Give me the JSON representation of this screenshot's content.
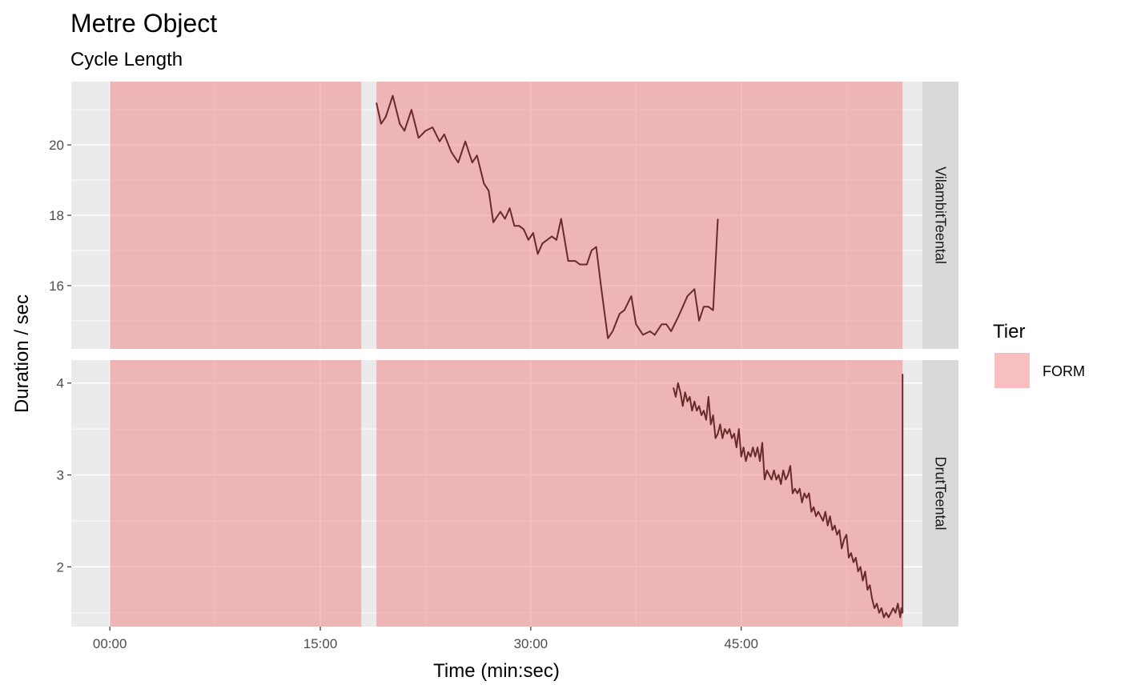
{
  "chart_data": {
    "type": "line",
    "title": "Metre Object",
    "subtitle": "Cycle Length",
    "xlabel": "Time (min:sec)",
    "ylabel": "Duration / sec",
    "x_unit": "seconds",
    "x_ticks": [
      {
        "value": 0,
        "label": "00:00"
      },
      {
        "value": 900,
        "label": "15:00"
      },
      {
        "value": 1800,
        "label": "30:00"
      },
      {
        "value": 2700,
        "label": "45:00"
      }
    ],
    "xlim": [
      -165,
      3475
    ],
    "grid": true,
    "legend": {
      "title": "Tier",
      "position": "right",
      "items": [
        {
          "label": "FORM",
          "color": "#f08080"
        }
      ]
    },
    "tier_spans": [
      {
        "tier": "FORM",
        "start": 0,
        "end": 1075
      },
      {
        "tier": "FORM",
        "start": 1140,
        "end": 3390
      }
    ],
    "panels": [
      {
        "strip": "VilambitTeental",
        "ylim": [
          14.2,
          21.8
        ],
        "y_ticks": [
          16,
          18,
          20
        ],
        "series": {
          "x": [
            1140,
            1160,
            1180,
            1210,
            1240,
            1260,
            1290,
            1320,
            1350,
            1380,
            1410,
            1430,
            1460,
            1490,
            1520,
            1550,
            1570,
            1600,
            1620,
            1640,
            1670,
            1690,
            1710,
            1730,
            1750,
            1770,
            1790,
            1810,
            1830,
            1850,
            1870,
            1890,
            1910,
            1930,
            1960,
            1990,
            2010,
            2040,
            2060,
            2080,
            2100,
            2130,
            2150,
            2180,
            2200,
            2230,
            2250,
            2280,
            2310,
            2330,
            2360,
            2380,
            2400,
            2430,
            2450,
            2470,
            2500,
            2520,
            2540,
            2560,
            2580,
            2600,
            2610,
            2630,
            2650
          ],
          "y": [
            21.2,
            20.6,
            20.8,
            21.4,
            20.6,
            20.4,
            21.0,
            20.2,
            20.4,
            20.5,
            20.1,
            20.3,
            19.8,
            19.5,
            20.1,
            19.5,
            19.7,
            18.9,
            18.7,
            17.8,
            18.1,
            17.9,
            18.2,
            17.7,
            17.7,
            17.6,
            17.3,
            17.5,
            16.9,
            17.2,
            17.3,
            17.4,
            17.3,
            17.9,
            16.7,
            16.7,
            16.6,
            16.6,
            17.0,
            17.1,
            16.0,
            14.5,
            14.7,
            15.2,
            15.3,
            15.7,
            14.9,
            14.6,
            14.7,
            14.6,
            14.9,
            14.9,
            14.7,
            15.1,
            15.4,
            15.7,
            15.9,
            15.0,
            15.4,
            15.4,
            15.3,
            17.9,
            null,
            null,
            null
          ]
        }
      },
      {
        "strip": "DrutTeental",
        "ylim": [
          1.35,
          4.25
        ],
        "y_ticks": [
          2,
          3,
          4
        ],
        "series": {
          "x": [
            2410,
            2420,
            2430,
            2440,
            2450,
            2460,
            2470,
            2480,
            2490,
            2500,
            2510,
            2520,
            2530,
            2540,
            2550,
            2560,
            2570,
            2580,
            2590,
            2600,
            2610,
            2620,
            2630,
            2640,
            2650,
            2660,
            2670,
            2680,
            2690,
            2700,
            2710,
            2720,
            2730,
            2740,
            2750,
            2760,
            2770,
            2780,
            2790,
            2800,
            2810,
            2820,
            2830,
            2840,
            2850,
            2860,
            2870,
            2880,
            2890,
            2900,
            2910,
            2920,
            2930,
            2940,
            2950,
            2960,
            2970,
            2980,
            2990,
            3000,
            3010,
            3020,
            3030,
            3040,
            3050,
            3060,
            3070,
            3080,
            3090,
            3100,
            3110,
            3120,
            3130,
            3140,
            3150,
            3160,
            3170,
            3180,
            3190,
            3200,
            3210,
            3220,
            3230,
            3240,
            3250,
            3260,
            3270,
            3280,
            3290,
            3300,
            3310,
            3320,
            3330,
            3340,
            3350,
            3360,
            3370,
            3380,
            3385,
            3390,
            3390
          ],
          "y": [
            3.95,
            3.85,
            4.0,
            3.9,
            3.75,
            3.9,
            3.8,
            3.85,
            3.7,
            3.8,
            3.7,
            3.75,
            3.65,
            3.7,
            3.6,
            3.85,
            3.55,
            3.65,
            3.4,
            3.45,
            3.55,
            3.4,
            3.5,
            3.45,
            3.5,
            3.4,
            3.45,
            3.3,
            3.5,
            3.2,
            3.3,
            3.15,
            3.25,
            3.2,
            3.3,
            3.2,
            3.3,
            3.15,
            3.35,
            2.95,
            3.05,
            3.0,
            2.95,
            3.05,
            2.95,
            3.0,
            2.9,
            3.05,
            2.95,
            3.0,
            3.1,
            2.8,
            2.85,
            2.8,
            2.85,
            2.7,
            2.8,
            2.75,
            2.8,
            2.6,
            2.65,
            2.55,
            2.6,
            2.55,
            2.5,
            2.6,
            2.45,
            2.55,
            2.4,
            2.45,
            2.35,
            2.4,
            2.2,
            2.3,
            2.35,
            2.1,
            2.15,
            2.05,
            2.1,
            1.95,
            2.0,
            1.85,
            1.95,
            1.75,
            1.8,
            1.65,
            1.55,
            1.6,
            1.5,
            1.55,
            1.45,
            1.5,
            1.45,
            1.5,
            1.55,
            1.5,
            1.6,
            1.45,
            1.55,
            1.5,
            4.1
          ]
        }
      }
    ]
  }
}
